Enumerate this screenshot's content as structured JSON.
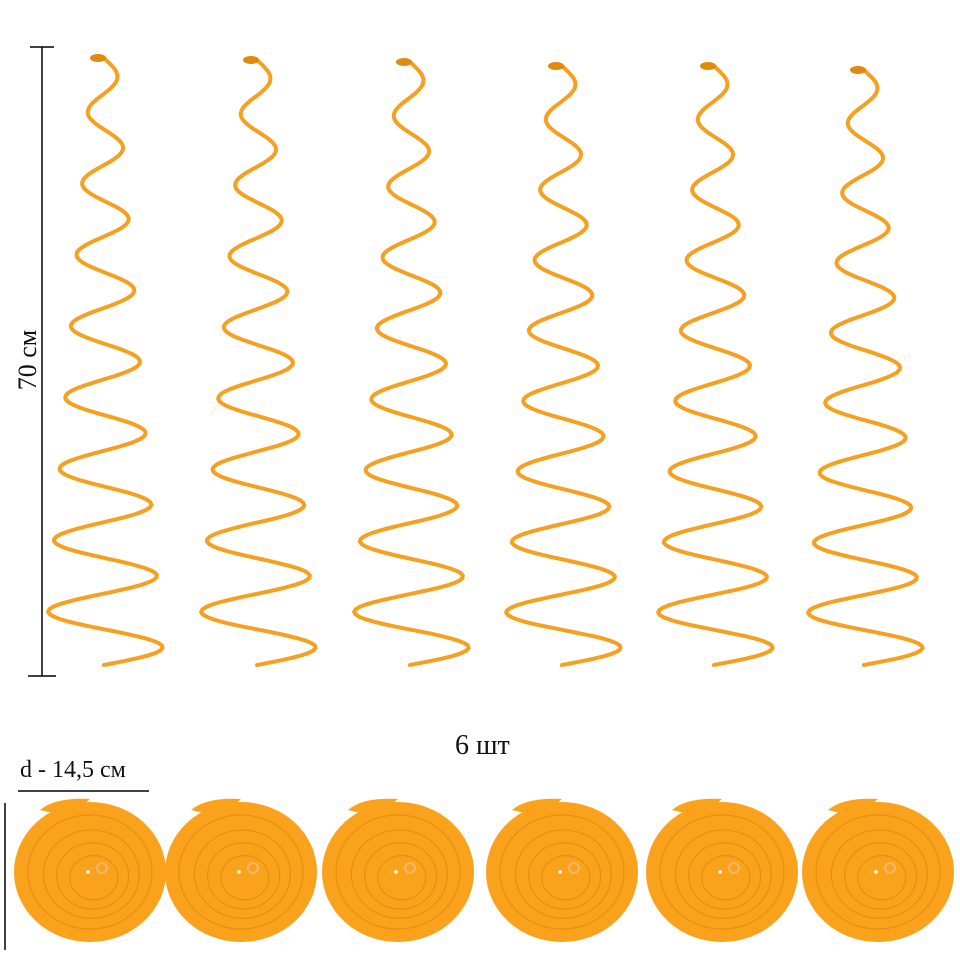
{
  "labels": {
    "height": "70 см",
    "count": "6 шт",
    "diameter": "d - 14,5 см"
  },
  "product": {
    "item_count": 6,
    "colors": {
      "spiral": "#f5a020",
      "spiral_dark": "#e08a10",
      "disk": "#fba21c",
      "disk_line": "#e58f12",
      "measure_line": "#000000"
    }
  }
}
